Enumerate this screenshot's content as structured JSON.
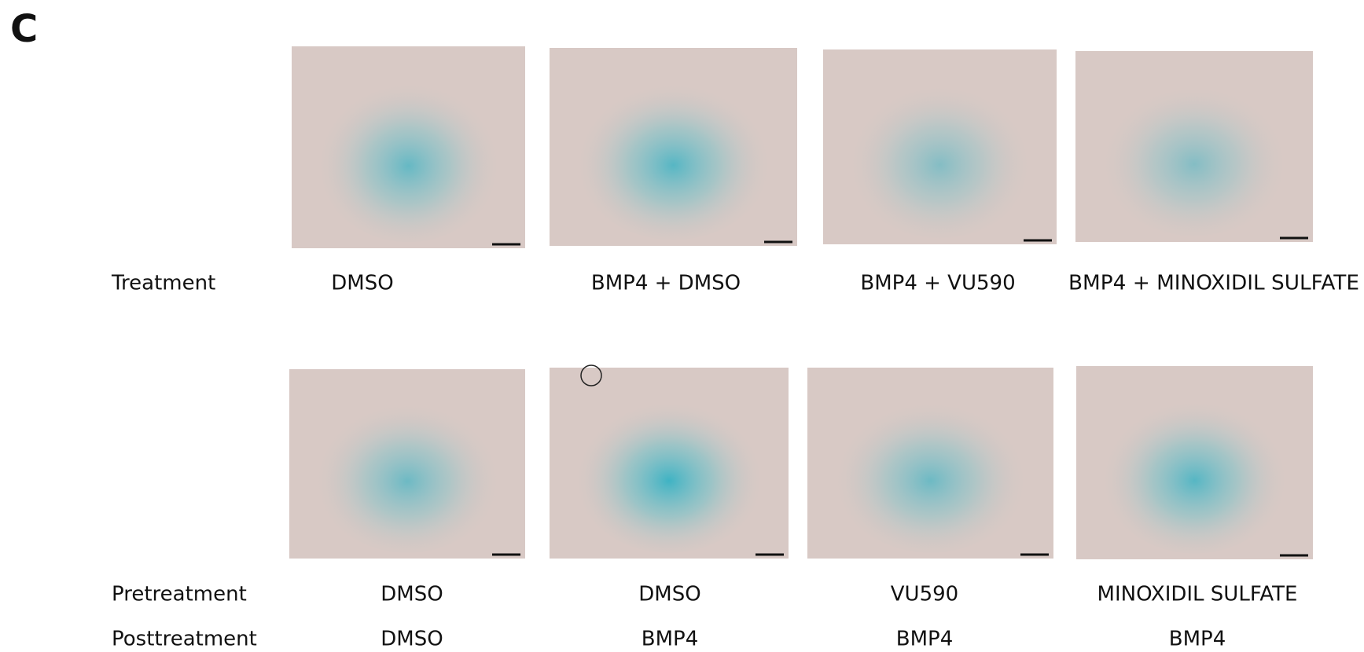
{
  "panel_label": "C",
  "top_row": {
    "row_label": "Treatment",
    "labels": [
      "DMSO",
      "BMP4 + DMSO",
      "BMP4 + VU590",
      "BMP4 + MINOXIDIL SULFATE"
    ]
  },
  "bottom_rows": [
    {
      "row_label": "Pretreatment",
      "labels": [
        "DMSO",
        "DMSO",
        "VU590",
        "MINOXIDIL SULFATE"
      ]
    },
    {
      "row_label": "Posttreatment",
      "labels": [
        "DMSO",
        "BMP4",
        "BMP4",
        "BMP4"
      ]
    }
  ]
}
